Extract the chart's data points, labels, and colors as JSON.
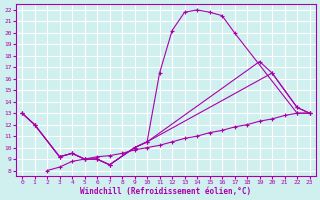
{
  "xlabel": "Windchill (Refroidissement éolien,°C)",
  "bg_color": "#d0f0f0",
  "grid_color": "#ffffff",
  "line_color": "#aa00aa",
  "xlim": [
    -0.5,
    23.5
  ],
  "ylim": [
    7.5,
    22.5
  ],
  "xticks": [
    0,
    1,
    2,
    3,
    4,
    5,
    6,
    7,
    8,
    9,
    10,
    11,
    12,
    13,
    14,
    15,
    16,
    17,
    18,
    19,
    20,
    21,
    22,
    23
  ],
  "yticks": [
    8,
    9,
    10,
    11,
    12,
    13,
    14,
    15,
    16,
    17,
    18,
    19,
    20,
    21,
    22
  ],
  "line_A": {
    "x": [
      0,
      1,
      3,
      4,
      5,
      6,
      7,
      9,
      10,
      11,
      12,
      13,
      14,
      15,
      16,
      17,
      22,
      23
    ],
    "y": [
      13,
      12,
      9.2,
      9.5,
      9.0,
      9.0,
      8.5,
      10.0,
      10.5,
      16.5,
      20.2,
      21.8,
      22.0,
      21.8,
      21.5,
      20.0,
      13.0,
      13.0
    ]
  },
  "line_B": {
    "x": [
      0,
      1,
      3,
      4,
      5,
      6,
      7,
      9,
      10,
      19,
      20,
      22,
      23
    ],
    "y": [
      13,
      12,
      9.2,
      9.5,
      9.0,
      9.0,
      8.5,
      10.0,
      10.5,
      17.5,
      16.5,
      13.5,
      13.0
    ]
  },
  "line_C": {
    "x": [
      0,
      1,
      3,
      4,
      5,
      6,
      7,
      9,
      10,
      20,
      22,
      23
    ],
    "y": [
      13,
      12,
      9.2,
      9.5,
      9.0,
      9.0,
      8.5,
      10.0,
      10.5,
      16.5,
      13.5,
      13.0
    ]
  },
  "line_D": {
    "x": [
      2,
      3,
      4,
      5,
      6,
      7,
      8,
      9,
      10,
      11,
      12,
      13,
      14,
      15,
      16,
      17,
      18,
      19,
      20,
      21,
      22,
      23
    ],
    "y": [
      8.0,
      8.3,
      8.8,
      9.0,
      9.2,
      9.3,
      9.5,
      9.8,
      10.0,
      10.2,
      10.5,
      10.8,
      11.0,
      11.3,
      11.5,
      11.8,
      12.0,
      12.3,
      12.5,
      12.8,
      13.0,
      13.0
    ]
  }
}
